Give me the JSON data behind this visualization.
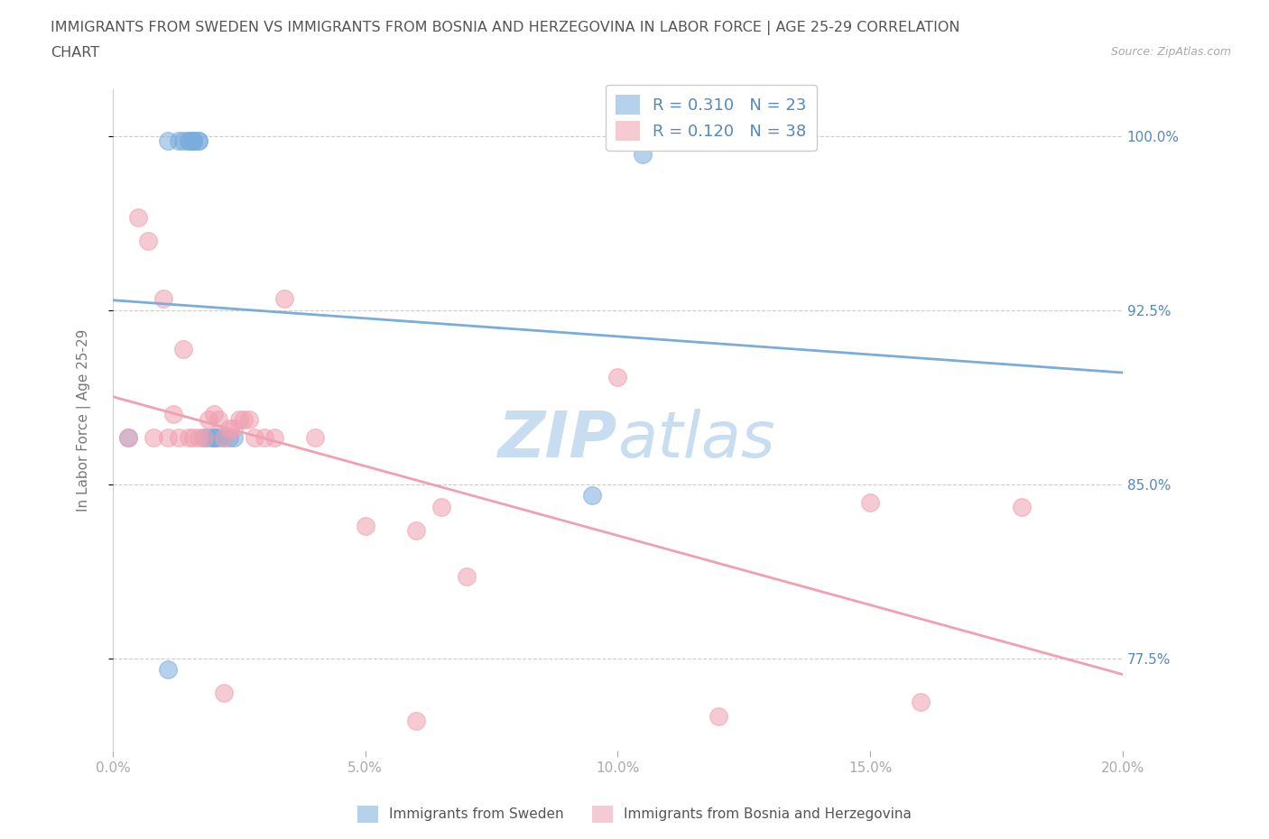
{
  "title_line1": "IMMIGRANTS FROM SWEDEN VS IMMIGRANTS FROM BOSNIA AND HERZEGOVINA IN LABOR FORCE | AGE 25-29 CORRELATION",
  "title_line2": "CHART",
  "source": "Source: ZipAtlas.com",
  "ylabel": "In Labor Force | Age 25-29",
  "xmin": 0.0,
  "xmax": 0.2,
  "ymin": 0.735,
  "ymax": 1.02,
  "ytick_labels_show": [
    "77.5%",
    "85.0%",
    "92.5%",
    "100.0%"
  ],
  "ytick_show_vals": [
    0.775,
    0.85,
    0.925,
    1.0
  ],
  "xtick_labels": [
    "0.0%",
    "",
    "5.0%",
    "",
    "10.0%",
    "",
    "15.0%",
    "",
    "20.0%"
  ],
  "xtick_vals": [
    0.0,
    0.025,
    0.05,
    0.075,
    0.1,
    0.125,
    0.15,
    0.175,
    0.2
  ],
  "xtick_display": [
    "0.0%",
    "5.0%",
    "10.0%",
    "15.0%",
    "20.0%"
  ],
  "xtick_display_vals": [
    0.0,
    0.05,
    0.1,
    0.15,
    0.2
  ],
  "sweden_color": "#7aacdc",
  "bosnia_color": "#f0a0b0",
  "sweden_R": 0.31,
  "sweden_N": 23,
  "bosnia_R": 0.12,
  "bosnia_N": 38,
  "background_color": "#ffffff",
  "grid_color": "#cccccc",
  "label_color": "#5588bb",
  "tick_color": "#aaaaaa",
  "watermark_color": "#c8ddf0",
  "sweden_x": [
    0.003,
    0.011,
    0.013,
    0.014,
    0.015,
    0.015,
    0.016,
    0.016,
    0.016,
    0.017,
    0.017,
    0.018,
    0.019,
    0.02,
    0.02,
    0.02,
    0.021,
    0.022,
    0.023,
    0.024,
    0.011,
    0.095,
    0.105
  ],
  "sweden_y": [
    0.87,
    0.998,
    0.998,
    0.998,
    0.998,
    0.998,
    0.998,
    0.998,
    0.998,
    0.998,
    0.998,
    0.87,
    0.87,
    0.87,
    0.87,
    0.87,
    0.87,
    0.87,
    0.87,
    0.87,
    0.77,
    0.845,
    0.992
  ],
  "bosnia_x": [
    0.003,
    0.005,
    0.007,
    0.008,
    0.01,
    0.011,
    0.012,
    0.013,
    0.014,
    0.015,
    0.016,
    0.017,
    0.018,
    0.019,
    0.02,
    0.021,
    0.022,
    0.023,
    0.024,
    0.025,
    0.026,
    0.027,
    0.028,
    0.03,
    0.032,
    0.034,
    0.04,
    0.05,
    0.06,
    0.065,
    0.07,
    0.1,
    0.12,
    0.15,
    0.16,
    0.18,
    0.022,
    0.06
  ],
  "bosnia_y": [
    0.87,
    0.965,
    0.955,
    0.87,
    0.93,
    0.87,
    0.88,
    0.87,
    0.908,
    0.87,
    0.87,
    0.87,
    0.87,
    0.878,
    0.88,
    0.878,
    0.87,
    0.874,
    0.874,
    0.878,
    0.878,
    0.878,
    0.87,
    0.87,
    0.87,
    0.93,
    0.87,
    0.832,
    0.83,
    0.84,
    0.81,
    0.896,
    0.75,
    0.842,
    0.756,
    0.84,
    0.76,
    0.748
  ]
}
